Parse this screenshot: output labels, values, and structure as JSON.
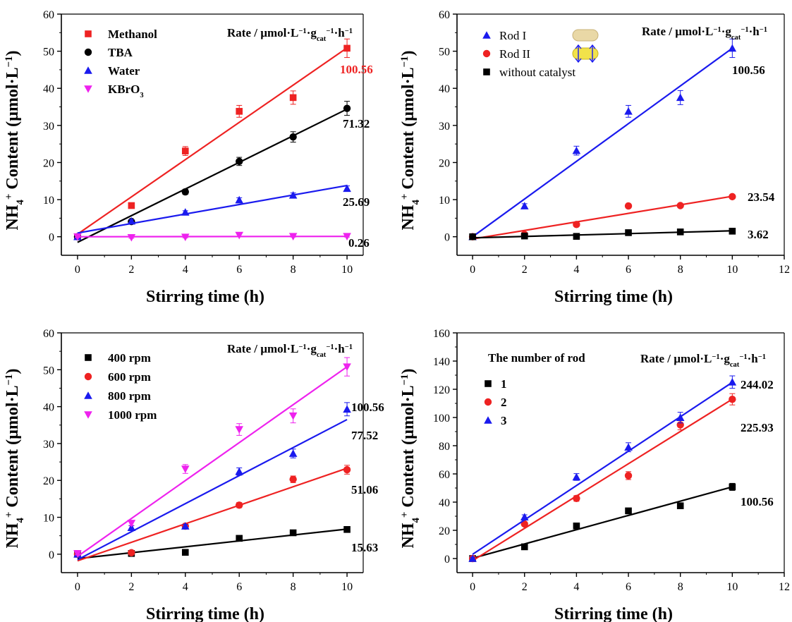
{
  "chart_data": [
    {
      "type": "scatter",
      "xlabel": "Stirring time (h)",
      "ylabel": "NH4+ Content (µmol·L−1)",
      "rate_label": "Rate / µmol·L−1·gcat−1·h−1",
      "xlim": [
        -0.6,
        10.6
      ],
      "ylim": [
        -5,
        60
      ],
      "xticks": [
        0,
        2,
        4,
        6,
        8,
        10
      ],
      "yticks": [
        0,
        10,
        20,
        30,
        40,
        50,
        60
      ],
      "x": [
        0,
        2,
        4,
        6,
        8,
        10
      ],
      "series": [
        {
          "name": "Methanol",
          "color": "#ee2222",
          "marker": "square",
          "values": [
            0,
            8.4,
            23.1,
            33.8,
            37.5,
            50.8
          ],
          "errors": [
            0.6,
            0.6,
            1.2,
            1.6,
            1.8,
            2.5
          ],
          "fit": [
            0.7,
            50.9
          ],
          "rate": "100.56",
          "rate_color": "#ee2222"
        },
        {
          "name": "TBA",
          "color": "#000000",
          "marker": "circle",
          "values": [
            0,
            4.1,
            12.1,
            20.3,
            26.9,
            34.6
          ],
          "errors": [
            0.4,
            0.5,
            0.7,
            1.1,
            1.4,
            1.9
          ],
          "fit": [
            -1.5,
            34.4
          ],
          "rate": "71.32",
          "rate_color": "#000000"
        },
        {
          "name": "Water",
          "color": "#1a1aee",
          "marker": "triangle-up",
          "values": [
            0,
            4.2,
            6.6,
            9.9,
            11.2,
            13.0
          ],
          "errors": [
            0.3,
            0.4,
            0.4,
            0.6,
            0.6,
            0.7
          ],
          "fit": [
            1.0,
            13.8
          ],
          "rate": "25.69",
          "rate_color": "#000000"
        },
        {
          "name": "KBrO3",
          "color": "#ee22ee",
          "marker": "triangle-down",
          "values": [
            0,
            -0.2,
            -0.1,
            0.4,
            0.1,
            0.1
          ],
          "errors": [
            0.2,
            0.2,
            0.2,
            0.3,
            0.2,
            0.2
          ],
          "fit": [
            0,
            0.1
          ],
          "rate": "0.26",
          "rate_color": "#000000"
        }
      ]
    },
    {
      "type": "scatter",
      "xlabel": "Stirring time (h)",
      "ylabel": "NH4+ Content (µmol·L−1)",
      "rate_label": "Rate / µmol·L−1·gcat−1·h−1",
      "xlim": [
        -0.6,
        12
      ],
      "ylim": [
        -5,
        60
      ],
      "xticks": [
        0,
        2,
        4,
        6,
        8,
        10,
        12
      ],
      "yticks": [
        0,
        10,
        20,
        30,
        40,
        50,
        60
      ],
      "x": [
        0,
        2,
        4,
        6,
        8,
        10
      ],
      "series": [
        {
          "name": "Rod I",
          "color": "#1a1aee",
          "marker": "triangle-up",
          "values": [
            0,
            8.3,
            23.2,
            33.8,
            37.5,
            50.8
          ],
          "errors": [
            0.5,
            0.6,
            1.2,
            1.6,
            1.9,
            2.5
          ],
          "fit": [
            0,
            50.8
          ],
          "rate": "100.56",
          "rate_color": "#000000"
        },
        {
          "name": "Rod II",
          "color": "#ee2222",
          "marker": "circle",
          "values": [
            0,
            0.6,
            3.3,
            8.3,
            8.4,
            10.8
          ],
          "errors": [
            0.2,
            0.3,
            0.3,
            0.4,
            0.4,
            0.5
          ],
          "fit": [
            -0.6,
            10.9
          ],
          "rate": "23.54",
          "rate_color": "#000000"
        },
        {
          "name": "without catalyst",
          "color": "#000000",
          "marker": "square",
          "values": [
            0,
            0.2,
            0.1,
            1.1,
            1.3,
            1.5
          ],
          "errors": [
            0.1,
            0.1,
            0.1,
            0.2,
            0.2,
            0.2
          ],
          "fit": [
            -0.3,
            1.6
          ],
          "rate": "3.62",
          "rate_color": "#000000"
        }
      ]
    },
    {
      "type": "scatter",
      "xlabel": "Stirring time (h)",
      "ylabel": "NH4+ Content (µmol·L−1)",
      "rate_label": "Rate / µmol·L−1·gcat−1·h−1",
      "xlim": [
        -0.6,
        10.6
      ],
      "ylim": [
        -5,
        60
      ],
      "xticks": [
        0,
        2,
        4,
        6,
        8,
        10
      ],
      "yticks": [
        0,
        10,
        20,
        30,
        40,
        50,
        60
      ],
      "x": [
        0,
        2,
        4,
        6,
        8,
        10
      ],
      "series": [
        {
          "name": "400 rpm",
          "color": "#000000",
          "marker": "square",
          "values": [
            0,
            0.2,
            0.5,
            4.3,
            5.8,
            6.7
          ],
          "errors": [
            0.1,
            0.2,
            0.2,
            0.3,
            0.3,
            0.4
          ],
          "fit": [
            -1.2,
            6.8
          ],
          "rate": "15.63",
          "rate_color": "#000000"
        },
        {
          "name": "600 rpm",
          "color": "#ee2222",
          "marker": "circle",
          "values": [
            0,
            0.4,
            7.6,
            13.3,
            20.3,
            22.9
          ],
          "errors": [
            0.2,
            0.3,
            0.5,
            0.7,
            0.9,
            1.2
          ],
          "fit": [
            -1.8,
            23.3
          ],
          "rate": "51.06",
          "rate_color": "#000000"
        },
        {
          "name": "800 rpm",
          "color": "#1a1aee",
          "marker": "triangle-up",
          "values": [
            0,
            7.2,
            7.6,
            22.4,
            27.3,
            39.3
          ],
          "errors": [
            0.3,
            0.5,
            0.5,
            1.0,
            1.2,
            1.8
          ],
          "fit": [
            -1.5,
            36.5
          ],
          "rate": "77.52",
          "rate_color": "#000000"
        },
        {
          "name": "1000 rpm",
          "color": "#ee22ee",
          "marker": "triangle-down",
          "values": [
            0.2,
            8.4,
            23.1,
            33.8,
            37.5,
            50.8
          ],
          "errors": [
            0.4,
            0.6,
            1.2,
            1.6,
            1.9,
            2.5
          ],
          "fit": [
            -0.6,
            50.8
          ],
          "rate": "100.56",
          "rate_color": "#000000"
        }
      ]
    },
    {
      "type": "scatter",
      "xlabel": "Stirring time (h)",
      "ylabel": "NH4+ Content (µmol·L−1)",
      "rate_label": "Rate / µmol·L−1·gcat−1·h−1",
      "legend_title": "The number of rod",
      "xlim": [
        -0.6,
        12
      ],
      "ylim": [
        -10,
        160
      ],
      "xticks": [
        0,
        2,
        4,
        6,
        8,
        10,
        12
      ],
      "yticks": [
        0,
        20,
        40,
        60,
        80,
        100,
        120,
        140,
        160
      ],
      "x": [
        0,
        2,
        4,
        6,
        8,
        10
      ],
      "series": [
        {
          "name": "1",
          "color": "#000000",
          "marker": "square",
          "values": [
            0,
            8.3,
            23.1,
            33.8,
            37.4,
            50.8
          ],
          "errors": [
            0.5,
            0.8,
            1.2,
            1.6,
            1.9,
            2.5
          ],
          "fit": [
            0.2,
            50.8
          ],
          "rate": "100.56",
          "rate_color": "#000000"
        },
        {
          "name": "2",
          "color": "#ee2222",
          "marker": "circle",
          "values": [
            0,
            24.5,
            42.6,
            58.8,
            94.8,
            112.9
          ],
          "errors": [
            0.8,
            1.5,
            2.0,
            2.8,
            3.5,
            4.0
          ],
          "fit": [
            -1.5,
            113.0
          ],
          "rate": "225.93",
          "rate_color": "#000000"
        },
        {
          "name": "3",
          "color": "#1a1aee",
          "marker": "triangle-up",
          "values": [
            0,
            29.4,
            57.8,
            78.9,
            99.9,
            125.1
          ],
          "errors": [
            0.9,
            1.6,
            2.4,
            3.2,
            3.8,
            4.4
          ],
          "fit": [
            3.0,
            124.9
          ],
          "rate": "244.02",
          "rate_color": "#000000"
        }
      ]
    }
  ]
}
